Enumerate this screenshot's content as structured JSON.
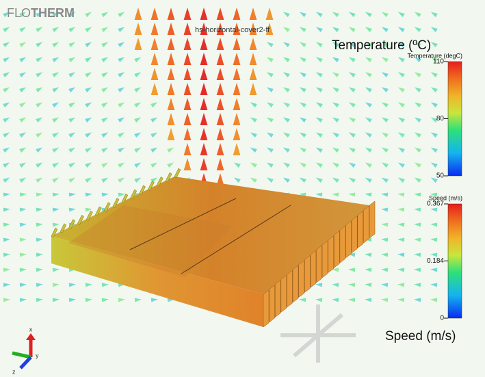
{
  "logo": {
    "light": "FLO",
    "bold": "THERM"
  },
  "view_title": "hs-horizontal-cover2-ff",
  "temperature_legend": {
    "heading": "Temperature (ºC)",
    "title": "Temperature (degC)",
    "ticks": [
      110,
      80,
      50
    ]
  },
  "speed_legend": {
    "heading": "Speed (m/s)",
    "title": "Speed (m/s)",
    "ticks": [
      0.367,
      0.184,
      0
    ]
  },
  "axis_triad": {
    "x": "x",
    "y": "y",
    "z": "z"
  }
}
